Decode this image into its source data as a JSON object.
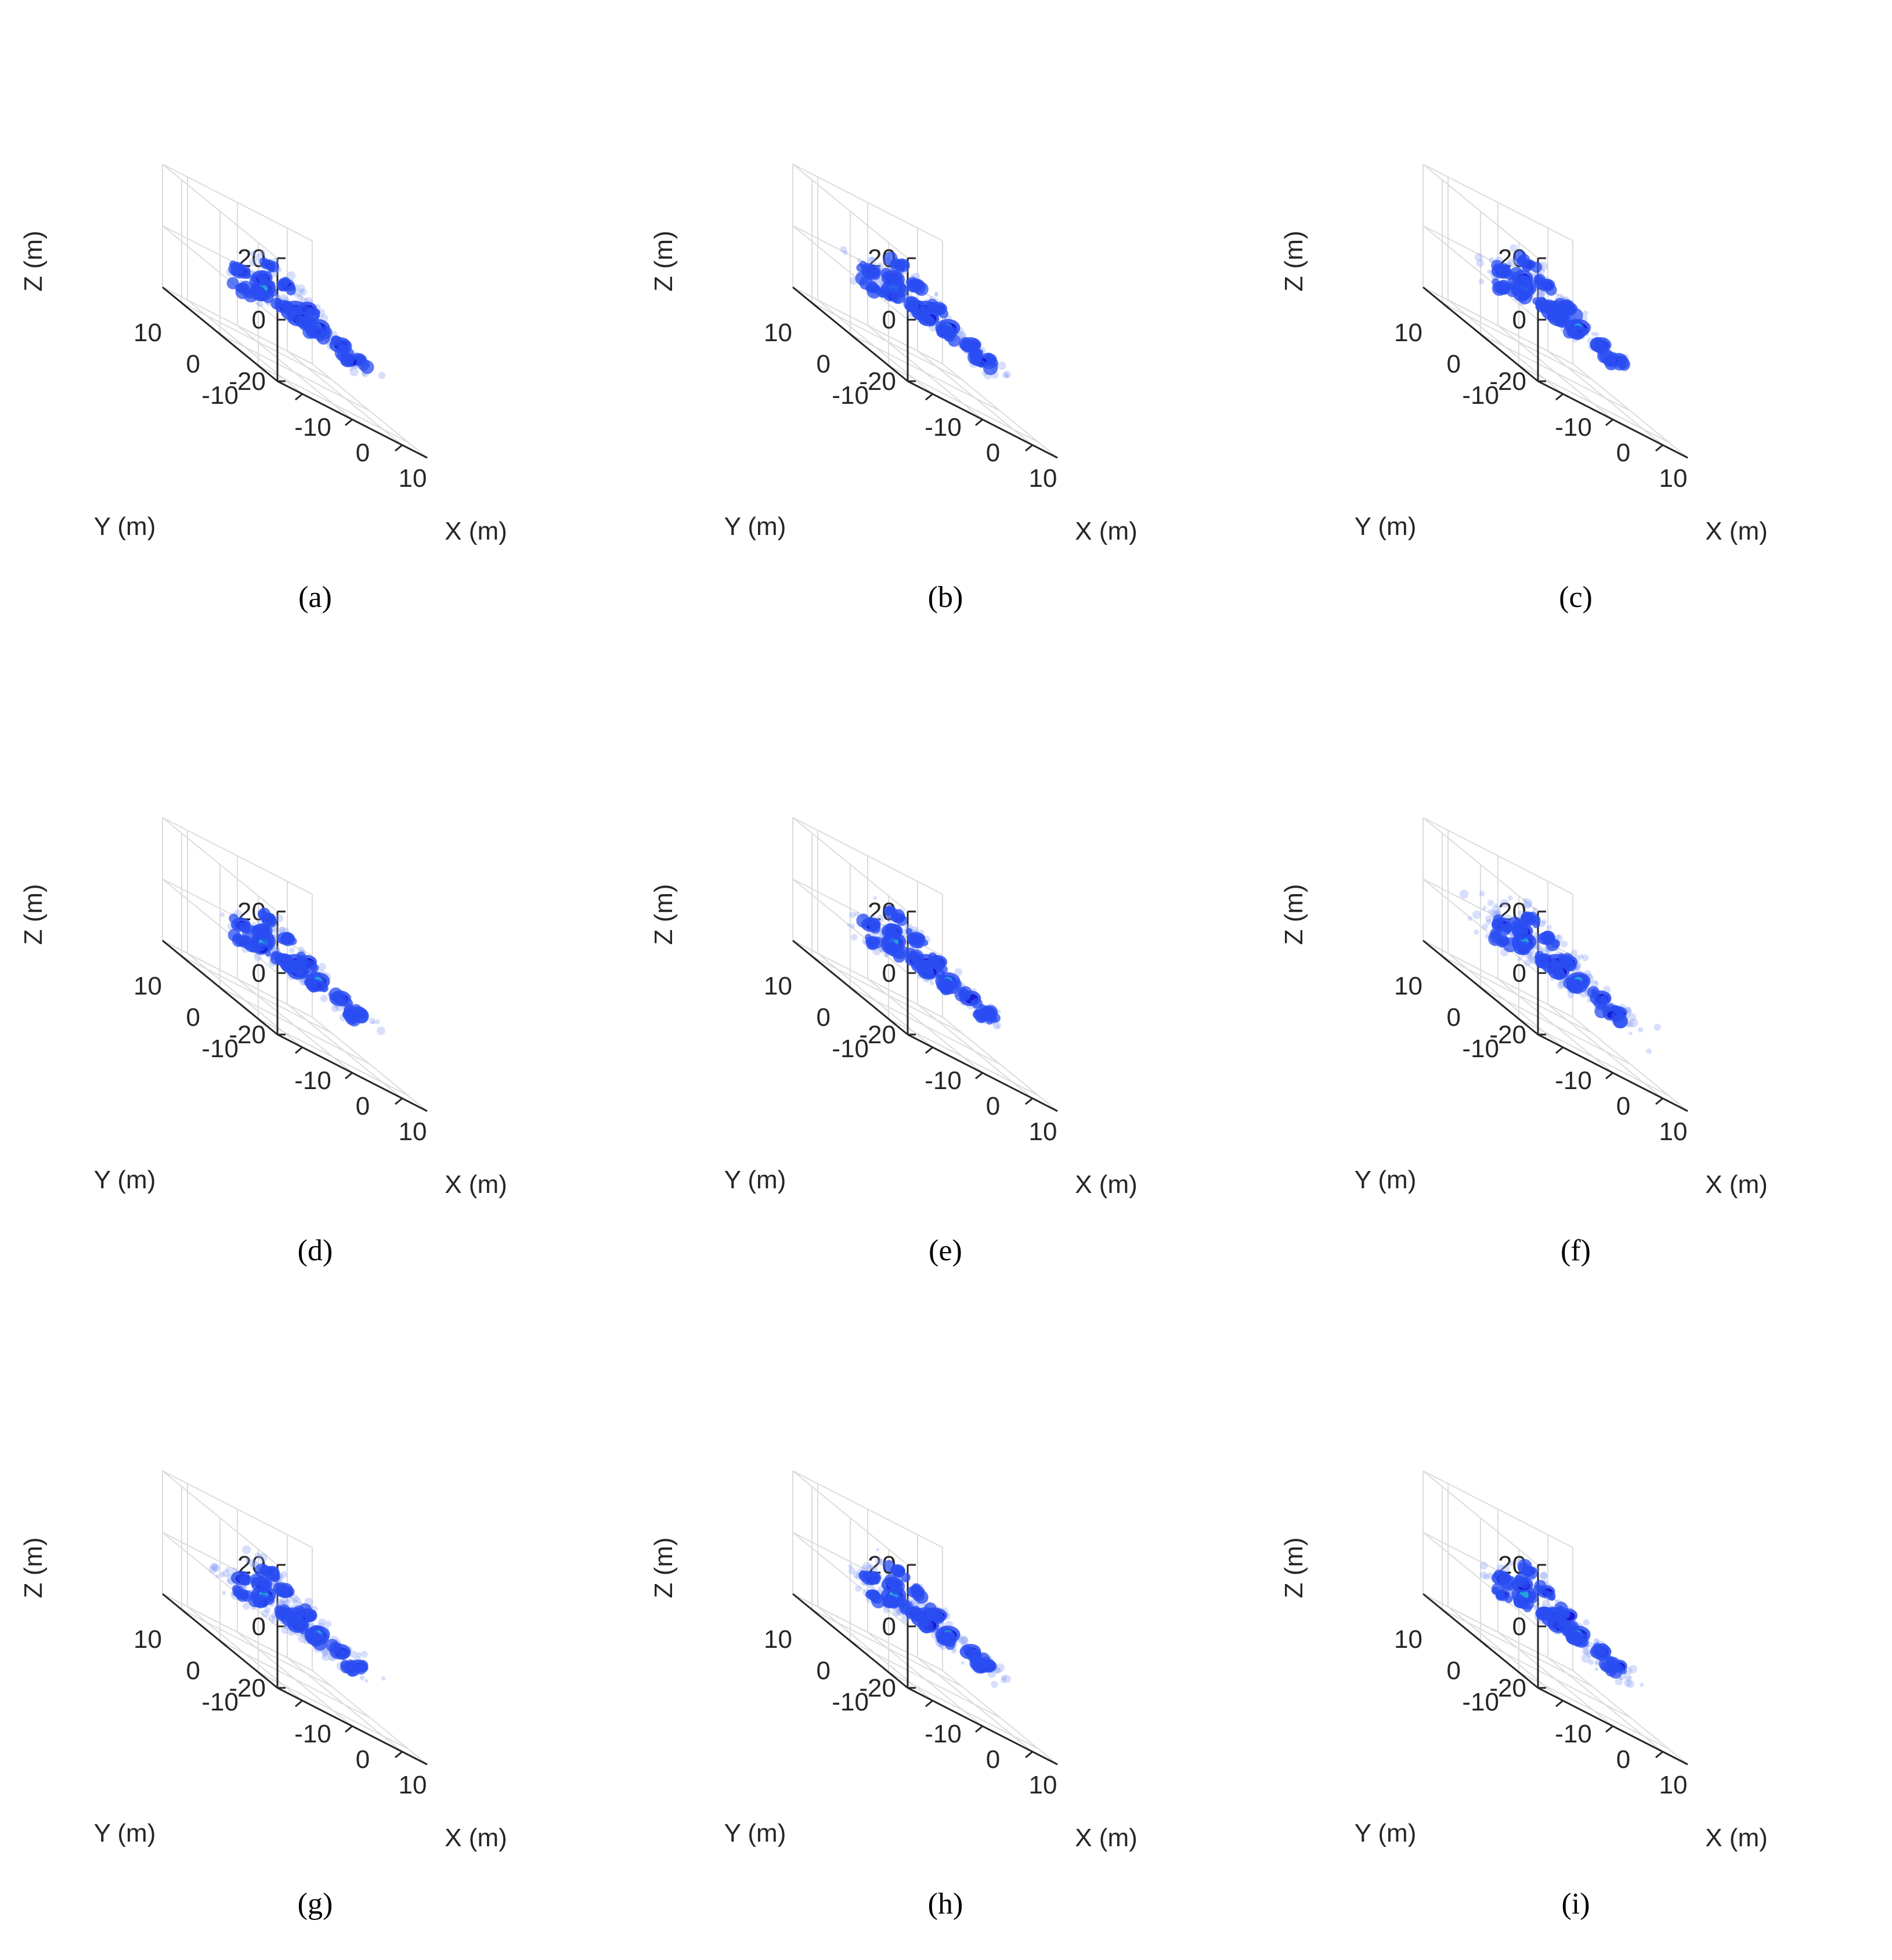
{
  "figure": {
    "colors": {
      "grid": "#dcdcdc",
      "axis": "#262626",
      "text": "#262626",
      "blob_dark": "#1414d0",
      "blob_mid": "#2a4df2",
      "blob_light": "#8fa4f5",
      "blob_hot": "#22b0d8"
    }
  },
  "chart_data": [
    {
      "label": "a",
      "type": "scatter3d",
      "title": "(a)",
      "xlabel": "X (m)",
      "ylabel": "Y (m)",
      "zlabel": "Z (m)",
      "xlim": [
        -15,
        15
      ],
      "ylim": [
        -15,
        15
      ],
      "zlim": [
        -20,
        20
      ],
      "xticks": [
        "-10",
        "0",
        "10"
      ],
      "yticks": [
        "-10",
        "0",
        "10"
      ],
      "zticks": [
        "-20",
        "0",
        "20"
      ],
      "spread": 1.0
    },
    {
      "label": "b",
      "type": "scatter3d",
      "title": "(b)",
      "xlabel": "X (m)",
      "ylabel": "Y (m)",
      "zlabel": "Z (m)",
      "xlim": [
        -15,
        15
      ],
      "ylim": [
        -15,
        15
      ],
      "zlim": [
        -20,
        20
      ],
      "xticks": [
        "-10",
        "0",
        "10"
      ],
      "yticks": [
        "-10",
        "0",
        "10"
      ],
      "zticks": [
        "-20",
        "0",
        "20"
      ],
      "spread": 1.05
    },
    {
      "label": "c",
      "type": "scatter3d",
      "title": "(c)",
      "xlabel": "X (m)",
      "ylabel": "Y (m)",
      "zlabel": "Z (m)",
      "xlim": [
        -15,
        15
      ],
      "ylim": [
        -15,
        15
      ],
      "zlim": [
        -20,
        20
      ],
      "xticks": [
        "-10",
        "0",
        "10"
      ],
      "yticks": [
        "-10",
        "0",
        "10"
      ],
      "zticks": [
        "-20",
        "0",
        "20"
      ],
      "spread": 1.05
    },
    {
      "label": "d",
      "type": "scatter3d",
      "title": "(d)",
      "xlabel": "X (m)",
      "ylabel": "Y (m)",
      "zlabel": "Z (m)",
      "xlim": [
        -15,
        15
      ],
      "ylim": [
        -15,
        15
      ],
      "zlim": [
        -20,
        20
      ],
      "xticks": [
        "-10",
        "0",
        "10"
      ],
      "yticks": [
        "-10",
        "0",
        "10"
      ],
      "zticks": [
        "-20",
        "0",
        "20"
      ],
      "spread": 1.0
    },
    {
      "label": "e",
      "type": "scatter3d",
      "title": "(e)",
      "xlabel": "X (m)",
      "ylabel": "Y (m)",
      "zlabel": "Z (m)",
      "xlim": [
        -15,
        15
      ],
      "ylim": [
        -15,
        15
      ],
      "zlim": [
        -20,
        20
      ],
      "xticks": [
        "-10",
        "0",
        "10"
      ],
      "yticks": [
        "-10",
        "0",
        "10"
      ],
      "zticks": [
        "-20",
        "0",
        "20"
      ],
      "spread": 1.0
    },
    {
      "label": "f",
      "type": "scatter3d",
      "title": "(f)",
      "xlabel": "X (m)",
      "ylabel": "Y (m)",
      "zlabel": "Z (m)",
      "xlim": [
        -15,
        15
      ],
      "ylim": [
        -15,
        15
      ],
      "zlim": [
        -20,
        20
      ],
      "xticks": [
        "-10",
        "0",
        "10"
      ],
      "yticks": [
        "-10",
        "0",
        "10"
      ],
      "zticks": [
        "-20",
        "0",
        "20"
      ],
      "spread": 1.6
    },
    {
      "label": "g",
      "type": "scatter3d",
      "title": "(g)",
      "xlabel": "X (m)",
      "ylabel": "Y (m)",
      "zlabel": "Z (m)",
      "xlim": [
        -15,
        15
      ],
      "ylim": [
        -15,
        15
      ],
      "zlim": [
        -20,
        20
      ],
      "xticks": [
        "-10",
        "0",
        "10"
      ],
      "yticks": [
        "-10",
        "0",
        "10"
      ],
      "zticks": [
        "-20",
        "0",
        "20"
      ],
      "spread": 1.5
    },
    {
      "label": "h",
      "type": "scatter3d",
      "title": "(h)",
      "xlabel": "X (m)",
      "ylabel": "Y (m)",
      "zlabel": "Z (m)",
      "xlim": [
        -15,
        15
      ],
      "ylim": [
        -15,
        15
      ],
      "zlim": [
        -20,
        20
      ],
      "xticks": [
        "-10",
        "0",
        "10"
      ],
      "yticks": [
        "-10",
        "0",
        "10"
      ],
      "zticks": [
        "-20",
        "0",
        "20"
      ],
      "spread": 1.1
    },
    {
      "label": "i",
      "type": "scatter3d",
      "title": "(i)",
      "xlabel": "X (m)",
      "ylabel": "Y (m)",
      "zlabel": "Z (m)",
      "xlim": [
        -15,
        15
      ],
      "ylim": [
        -15,
        15
      ],
      "zlim": [
        -20,
        20
      ],
      "xticks": [
        "-10",
        "0",
        "10"
      ],
      "yticks": [
        "-10",
        "0",
        "10"
      ],
      "zticks": [
        "-20",
        "0",
        "20"
      ],
      "spread": 1.1
    }
  ],
  "target_blobs": [
    {
      "x": 0,
      "y": 0,
      "z": 0,
      "r": 1.6
    },
    {
      "x": -4,
      "y": 3,
      "z": 1,
      "r": 1.4
    },
    {
      "x": -7,
      "y": 5,
      "z": 2,
      "r": 1.1
    },
    {
      "x": 3,
      "y": -2,
      "z": -1,
      "r": 1.4
    },
    {
      "x": 6,
      "y": -4,
      "z": -2,
      "r": 1.2
    },
    {
      "x": 8,
      "y": -6,
      "z": -3,
      "r": 1.0
    },
    {
      "x": -2,
      "y": 6,
      "z": 3,
      "r": 1.2
    },
    {
      "x": 2,
      "y": 5,
      "z": 5,
      "r": 1.0
    },
    {
      "x": 0,
      "y": 7,
      "z": 8,
      "r": 0.8
    },
    {
      "x": 4,
      "y": 2,
      "z": 2,
      "r": 1.1
    },
    {
      "x": -6,
      "y": 1,
      "z": -1,
      "r": 0.9
    },
    {
      "x": -9,
      "y": 2,
      "z": -2,
      "r": 0.8
    },
    {
      "x": 1,
      "y": -4,
      "z": -2,
      "r": 1.0
    },
    {
      "x": 5,
      "y": -8,
      "z": -4,
      "r": 0.9
    },
    {
      "x": -3,
      "y": -1,
      "z": 0,
      "r": 1.0
    },
    {
      "x": 3,
      "y": 3,
      "z": -3,
      "r": 1.2
    }
  ]
}
